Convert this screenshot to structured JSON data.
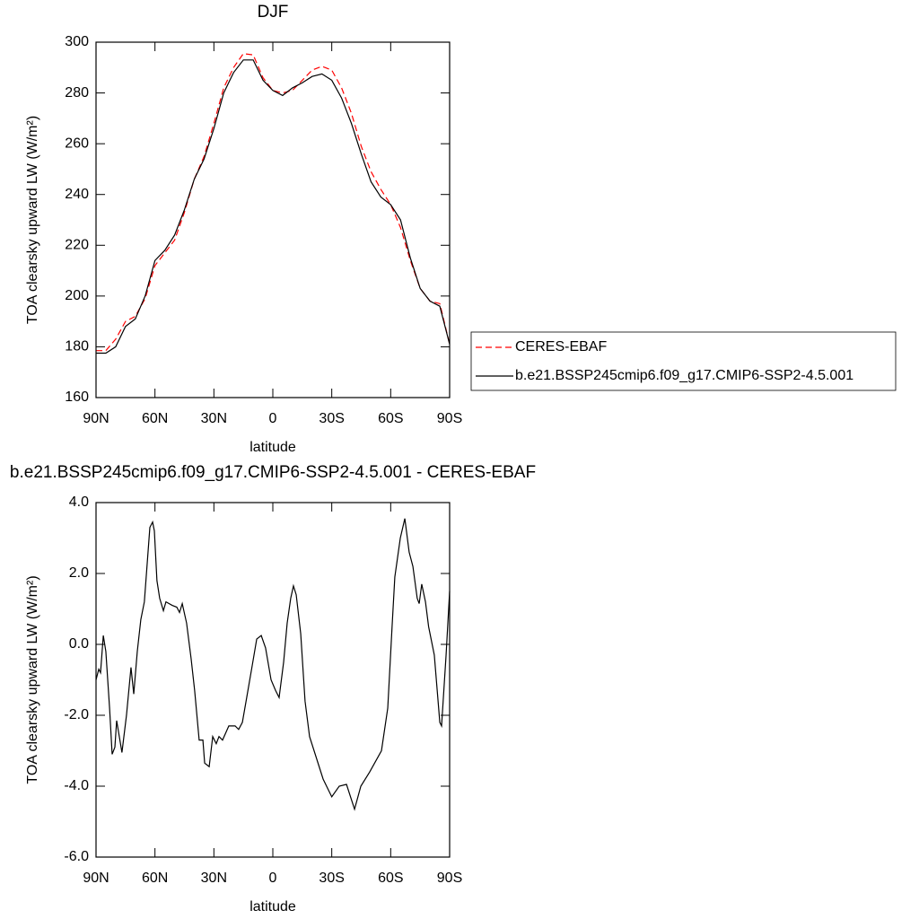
{
  "chart_data": [
    {
      "type": "line",
      "title": "DJF",
      "xlabel": "latitude",
      "ylabel": "TOA clearsky upward LW (W/m²)",
      "x": [
        90,
        85,
        80,
        75,
        70,
        65,
        60,
        55,
        50,
        45,
        40,
        35,
        30,
        25,
        20,
        15,
        10,
        5,
        0,
        -5,
        -10,
        -15,
        -20,
        -25,
        -30,
        -35,
        -40,
        -45,
        -50,
        -55,
        -60,
        -65,
        -70,
        -75,
        -80,
        -85,
        -90
      ],
      "series": [
        {
          "name": "CERES-EBAF",
          "color": "#ff0000",
          "linestyle": "dashed",
          "values": [
            178.5,
            178.5,
            183,
            190,
            192,
            199,
            212,
            217,
            222,
            233,
            246,
            255,
            268,
            282,
            290,
            295.5,
            295,
            286,
            281,
            280,
            281,
            285,
            289,
            290.5,
            289,
            282,
            272,
            259,
            249,
            242,
            236,
            227,
            214,
            203,
            198,
            197,
            181
          ]
        },
        {
          "name": "b.e21.BSSP245cmip6.f09_g17.CMIP6-SSP2-4.5.001",
          "color": "#000000",
          "linestyle": "solid",
          "values": [
            177.5,
            177.5,
            180,
            188,
            191,
            200,
            214,
            218,
            224,
            234,
            246,
            254,
            266,
            280,
            288,
            293,
            293,
            285,
            281,
            279,
            282,
            284,
            286.5,
            287.5,
            285,
            278,
            268,
            256,
            245,
            239,
            236,
            230,
            215,
            203,
            198,
            196,
            181
          ]
        }
      ],
      "xlim": [
        90,
        -90
      ],
      "xticks": [
        {
          "value": 90,
          "label": "90N"
        },
        {
          "value": 60,
          "label": "60N"
        },
        {
          "value": 30,
          "label": "30N"
        },
        0,
        {
          "value": -30,
          "label": "30S"
        },
        {
          "value": -60,
          "label": "60S"
        },
        {
          "value": -90,
          "label": "90S"
        }
      ],
      "ylim": [
        160,
        300
      ],
      "yticks": [
        160,
        180,
        200,
        220,
        240,
        260,
        280,
        300
      ],
      "legend": "right"
    },
    {
      "type": "line",
      "title": "b.e21.BSSP245cmip6.f09_g17.CMIP6-SSP2-4.5.001 - CERES-EBAF",
      "xlabel": "latitude",
      "ylabel": "TOA clearsky upward LW (W/m²)",
      "x": [
        90,
        88.6,
        87.7,
        86.3,
        85,
        83.1,
        81.8,
        80.4,
        79.5,
        76.8,
        74.5,
        72.2,
        70.8,
        69,
        67.2,
        65.4,
        62.6,
        61.2,
        60.3,
        59,
        57.6,
        55.7,
        54.4,
        51.2,
        48.9,
        47.5,
        46.1,
        43.9,
        41.6,
        39.8,
        37.5,
        35.6,
        34.7,
        32.4,
        30.6,
        28.8,
        27.4,
        25.6,
        22.4,
        19.2,
        17.4,
        15.5,
        13.3,
        10.5,
        8.2,
        5.9,
        3.7,
        0.9,
        -1.4,
        -3.2,
        -5.5,
        -7.3,
        -9.1,
        -10.5,
        -11.9,
        -14.2,
        -16.4,
        -18.7,
        -25.6,
        -30,
        -33.8,
        -37.5,
        -41.6,
        -44.8,
        -49.3,
        -55.3,
        -58.5,
        -60.7,
        -62.1,
        -64.9,
        -67.2,
        -69.4,
        -71.3,
        -73.5,
        -74.5,
        -75.8,
        -77.7,
        -79.3,
        -82.2,
        -85,
        -85.9,
        -88.2,
        -90
      ],
      "series": [
        {
          "color": "#000000",
          "linestyle": "solid",
          "values": [
            -1.0,
            -0.7,
            -0.8,
            0.25,
            -0.2,
            -1.8,
            -3.1,
            -2.9,
            -2.15,
            -3.05,
            -2.0,
            -0.65,
            -1.4,
            -0.2,
            0.7,
            1.2,
            3.3,
            3.45,
            3.2,
            1.8,
            1.3,
            0.95,
            1.2,
            1.1,
            1.05,
            0.9,
            1.15,
            0.6,
            -0.4,
            -1.3,
            -2.7,
            -2.7,
            -3.35,
            -3.45,
            -2.6,
            -2.8,
            -2.6,
            -2.7,
            -2.3,
            -2.3,
            -2.4,
            -2.2,
            -1.5,
            -0.6,
            0.15,
            0.25,
            -0.1,
            -1.0,
            -1.3,
            -1.5,
            -0.5,
            0.6,
            1.3,
            1.65,
            1.4,
            0.3,
            -1.6,
            -2.6,
            -3.8,
            -4.3,
            -4.0,
            -3.95,
            -4.65,
            -4.0,
            -3.6,
            -3.0,
            -1.8,
            0.5,
            1.9,
            3.0,
            3.55,
            2.6,
            2.2,
            1.3,
            1.15,
            1.7,
            1.2,
            0.5,
            -0.3,
            -2.2,
            -2.3,
            -0.3,
            1.5
          ]
        }
      ],
      "xlim": [
        90,
        -90
      ],
      "xticks": [
        {
          "value": 90,
          "label": "90N"
        },
        {
          "value": 60,
          "label": "60N"
        },
        {
          "value": 30,
          "label": "30N"
        },
        0,
        {
          "value": -30,
          "label": "30S"
        },
        {
          "value": -60,
          "label": "60S"
        },
        {
          "value": -90,
          "label": "90S"
        }
      ],
      "ylim": [
        -6,
        4
      ],
      "yticks": [
        {
          "value": -6,
          "label": "-6.0"
        },
        {
          "value": -4,
          "label": "-4.0"
        },
        {
          "value": -2,
          "label": "-2.0"
        },
        {
          "value": 0,
          "label": "0.0"
        },
        {
          "value": 2,
          "label": "2.0"
        },
        {
          "value": 4,
          "label": "4.0"
        }
      ]
    }
  ]
}
